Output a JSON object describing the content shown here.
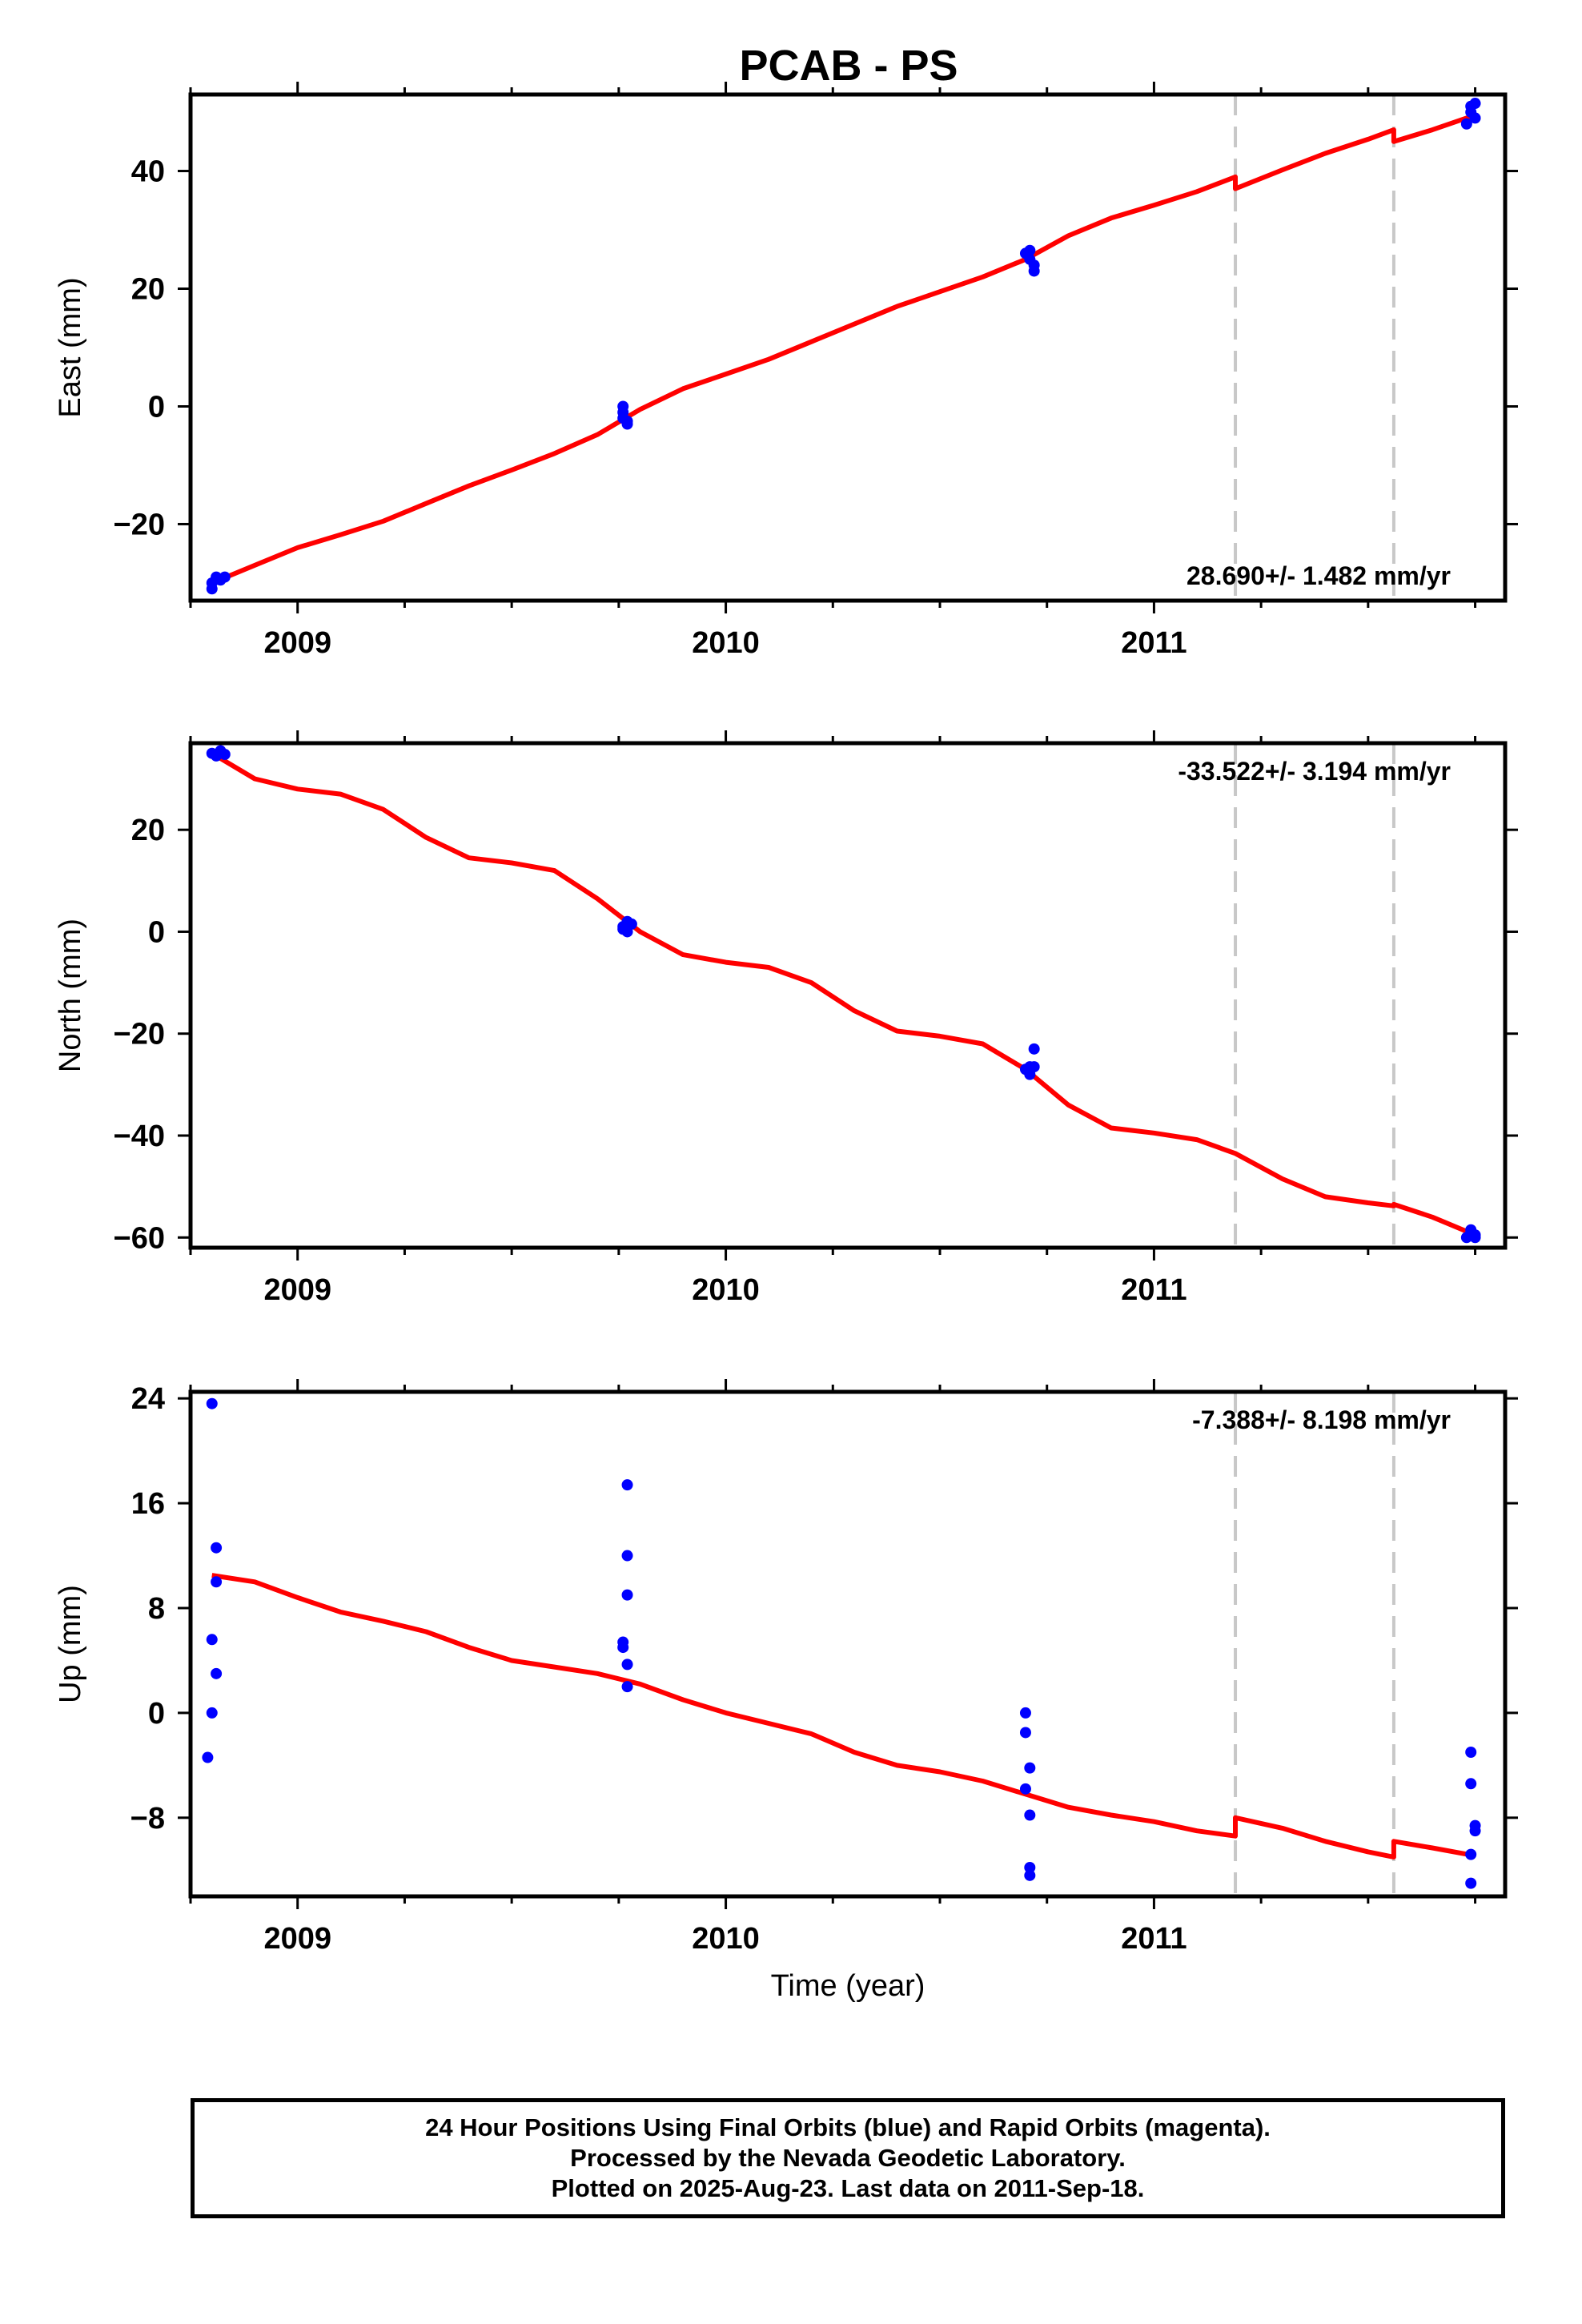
{
  "chart_data": {
    "title": "PCAB - PS",
    "type": "scatter",
    "xlim": [
      2008.75,
      2011.82
    ],
    "x_ticks": [
      2009,
      2010,
      2011
    ],
    "x_tick_labels": [
      "2009",
      "2010",
      "2011"
    ],
    "xlabel": "Time (year)",
    "event_lines_x": [
      2011.19,
      2011.56
    ],
    "panels": [
      {
        "id": "east",
        "ylabel": "East (mm)",
        "ylim": [
          -33,
          53
        ],
        "y_ticks": [
          -20,
          0,
          20,
          40
        ],
        "y_tick_labels": [
          "−20",
          "0",
          "20",
          "40"
        ],
        "rate_label": "28.690+/- 1.482 mm/yr",
        "rate_position": "bottom-right",
        "observations": [
          [
            2008.8,
            -31.0
          ],
          [
            2008.8,
            -30.0
          ],
          [
            2008.81,
            -29.0
          ],
          [
            2008.82,
            -29.5
          ],
          [
            2008.83,
            -29.0
          ],
          [
            2009.76,
            0.0
          ],
          [
            2009.76,
            -1.0
          ],
          [
            2009.76,
            -2.0
          ],
          [
            2009.77,
            -2.5
          ],
          [
            2009.77,
            -3.0
          ],
          [
            2010.7,
            26.0
          ],
          [
            2010.71,
            26.5
          ],
          [
            2010.71,
            25.0
          ],
          [
            2010.72,
            24.0
          ],
          [
            2010.72,
            23.0
          ],
          [
            2011.73,
            48.0
          ],
          [
            2011.74,
            51.0
          ],
          [
            2011.74,
            50.0
          ],
          [
            2011.75,
            49.0
          ],
          [
            2011.75,
            51.5
          ]
        ],
        "model": [
          [
            2008.8,
            -30.0
          ],
          [
            2008.9,
            -27.0
          ],
          [
            2009.0,
            -24.0
          ],
          [
            2009.1,
            -21.8
          ],
          [
            2009.2,
            -19.5
          ],
          [
            2009.3,
            -16.5
          ],
          [
            2009.4,
            -13.5
          ],
          [
            2009.5,
            -10.8
          ],
          [
            2009.6,
            -8.0
          ],
          [
            2009.7,
            -4.8
          ],
          [
            2009.8,
            -0.5
          ],
          [
            2009.9,
            3.0
          ],
          [
            2010.0,
            5.5
          ],
          [
            2010.1,
            8.0
          ],
          [
            2010.2,
            11.0
          ],
          [
            2010.3,
            14.0
          ],
          [
            2010.4,
            17.0
          ],
          [
            2010.5,
            19.5
          ],
          [
            2010.6,
            22.0
          ],
          [
            2010.7,
            25.0
          ],
          [
            2010.8,
            29.0
          ],
          [
            2010.9,
            32.0
          ],
          [
            2011.0,
            34.2
          ],
          [
            2011.1,
            36.5
          ],
          [
            2011.19,
            39.0
          ],
          [
            2011.19,
            37.0
          ],
          [
            2011.3,
            40.2
          ],
          [
            2011.4,
            43.0
          ],
          [
            2011.5,
            45.4
          ],
          [
            2011.56,
            47.0
          ],
          [
            2011.56,
            45.0
          ],
          [
            2011.65,
            47.0
          ],
          [
            2011.75,
            49.5
          ]
        ]
      },
      {
        "id": "north",
        "ylabel": "North (mm)",
        "ylim": [
          -62,
          37
        ],
        "y_ticks": [
          -60,
          -40,
          -20,
          0,
          20
        ],
        "y_tick_labels": [
          "−60",
          "−40",
          "−20",
          "0",
          "20"
        ],
        "rate_label": "-33.522+/- 3.194 mm/yr",
        "rate_position": "top-right",
        "observations": [
          [
            2008.8,
            35.0
          ],
          [
            2008.81,
            34.5
          ],
          [
            2008.82,
            35.5
          ],
          [
            2008.83,
            34.8
          ],
          [
            2009.76,
            0.5
          ],
          [
            2009.76,
            1.0
          ],
          [
            2009.77,
            0.0
          ],
          [
            2009.77,
            2.0
          ],
          [
            2009.78,
            1.5
          ],
          [
            2010.7,
            -27.0
          ],
          [
            2010.71,
            -28.0
          ],
          [
            2010.71,
            -26.5
          ],
          [
            2010.72,
            -23.0
          ],
          [
            2010.72,
            -26.5
          ],
          [
            2011.73,
            -60.0
          ],
          [
            2011.74,
            -59.0
          ],
          [
            2011.74,
            -58.5
          ],
          [
            2011.75,
            -60.0
          ],
          [
            2011.75,
            -59.5
          ]
        ],
        "model": [
          [
            2008.8,
            35.0
          ],
          [
            2008.9,
            30.0
          ],
          [
            2009.0,
            28.0
          ],
          [
            2009.1,
            27.0
          ],
          [
            2009.2,
            24.0
          ],
          [
            2009.3,
            18.5
          ],
          [
            2009.4,
            14.5
          ],
          [
            2009.5,
            13.5
          ],
          [
            2009.6,
            12.0
          ],
          [
            2009.7,
            6.5
          ],
          [
            2009.8,
            0.0
          ],
          [
            2009.9,
            -4.5
          ],
          [
            2010.0,
            -6.0
          ],
          [
            2010.1,
            -7.0
          ],
          [
            2010.2,
            -10.0
          ],
          [
            2010.3,
            -15.5
          ],
          [
            2010.4,
            -19.5
          ],
          [
            2010.5,
            -20.5
          ],
          [
            2010.6,
            -22.0
          ],
          [
            2010.7,
            -27.0
          ],
          [
            2010.8,
            -34.0
          ],
          [
            2010.9,
            -38.5
          ],
          [
            2011.0,
            -39.5
          ],
          [
            2011.1,
            -40.8
          ],
          [
            2011.19,
            -43.5
          ],
          [
            2011.3,
            -48.5
          ],
          [
            2011.4,
            -52.0
          ],
          [
            2011.5,
            -53.2
          ],
          [
            2011.56,
            -53.8
          ],
          [
            2011.56,
            -53.5
          ],
          [
            2011.65,
            -56.0
          ],
          [
            2011.75,
            -59.5
          ]
        ]
      },
      {
        "id": "up",
        "ylabel": "Up (mm)",
        "ylim": [
          -14,
          24.5
        ],
        "y_ticks": [
          -8,
          0,
          8,
          16,
          24
        ],
        "y_tick_labels": [
          "−8",
          "0",
          "8",
          "16",
          "24"
        ],
        "rate_label": "-7.388+/- 8.198 mm/yr",
        "rate_position": "top-right",
        "observations": [
          [
            2008.8,
            23.6
          ],
          [
            2008.81,
            12.6
          ],
          [
            2008.81,
            10.0
          ],
          [
            2008.8,
            5.6
          ],
          [
            2008.81,
            3.0
          ],
          [
            2008.8,
            0.0
          ],
          [
            2008.79,
            -3.4
          ],
          [
            2009.77,
            17.4
          ],
          [
            2009.77,
            12.0
          ],
          [
            2009.77,
            9.0
          ],
          [
            2009.76,
            5.4
          ],
          [
            2009.76,
            5.0
          ],
          [
            2009.77,
            3.7
          ],
          [
            2009.77,
            2.0
          ],
          [
            2010.7,
            0.0
          ],
          [
            2010.7,
            -1.5
          ],
          [
            2010.71,
            -4.2
          ],
          [
            2010.7,
            -5.8
          ],
          [
            2010.71,
            -7.8
          ],
          [
            2010.71,
            -11.8
          ],
          [
            2010.71,
            -12.4
          ],
          [
            2011.74,
            -3.0
          ],
          [
            2011.74,
            -5.4
          ],
          [
            2011.75,
            -8.6
          ],
          [
            2011.75,
            -9.0
          ],
          [
            2011.74,
            -10.8
          ],
          [
            2011.74,
            -13.0
          ]
        ],
        "model": [
          [
            2008.8,
            10.5
          ],
          [
            2008.9,
            10.0
          ],
          [
            2009.0,
            8.8
          ],
          [
            2009.1,
            7.7
          ],
          [
            2009.2,
            7.0
          ],
          [
            2009.3,
            6.2
          ],
          [
            2009.4,
            5.0
          ],
          [
            2009.5,
            4.0
          ],
          [
            2009.6,
            3.5
          ],
          [
            2009.7,
            3.0
          ],
          [
            2009.8,
            2.2
          ],
          [
            2009.9,
            1.0
          ],
          [
            2010.0,
            0.0
          ],
          [
            2010.1,
            -0.8
          ],
          [
            2010.2,
            -1.6
          ],
          [
            2010.3,
            -3.0
          ],
          [
            2010.4,
            -4.0
          ],
          [
            2010.5,
            -4.5
          ],
          [
            2010.6,
            -5.2
          ],
          [
            2010.7,
            -6.2
          ],
          [
            2010.8,
            -7.2
          ],
          [
            2010.9,
            -7.8
          ],
          [
            2011.0,
            -8.3
          ],
          [
            2011.1,
            -9.0
          ],
          [
            2011.19,
            -9.4
          ],
          [
            2011.19,
            -8.0
          ],
          [
            2011.3,
            -8.8
          ],
          [
            2011.4,
            -9.8
          ],
          [
            2011.5,
            -10.6
          ],
          [
            2011.56,
            -11.0
          ],
          [
            2011.56,
            -9.8
          ],
          [
            2011.65,
            -10.3
          ],
          [
            2011.75,
            -10.9
          ]
        ]
      }
    ]
  },
  "caption": {
    "line1": "24 Hour Positions Using Final Orbits (blue) and Rapid Orbits (magenta).",
    "line2": "Processed by the Nevada Geodetic Laboratory.",
    "line3": "Plotted on 2025-Aug-23. Last data on 2011-Sep-18."
  },
  "colors": {
    "observation": "#0000ff",
    "model": "#ff0000",
    "event_line": "#c8c8c8",
    "frame": "#000000"
  }
}
